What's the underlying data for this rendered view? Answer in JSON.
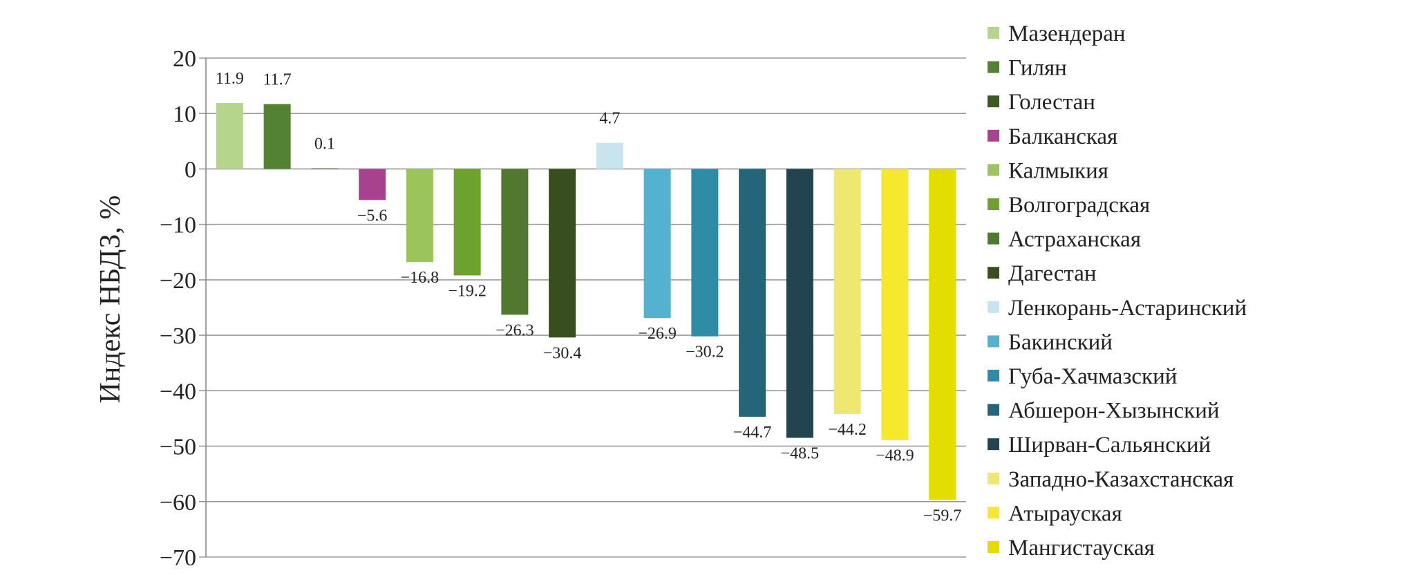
{
  "chart_data": {
    "type": "bar",
    "ylabel": "Индекс НБДЗ, %",
    "ylim": [
      -70,
      20
    ],
    "yticks": [
      20,
      10,
      0,
      -10,
      -20,
      -30,
      -40,
      -50,
      -60,
      -70
    ],
    "ytick_labels": [
      "20",
      "10",
      "0",
      "−10",
      "−20",
      "−30",
      "−40",
      "−50",
      "−60",
      "−70"
    ],
    "grid": true,
    "legend_position": "right",
    "categories": [
      "Мазендеран",
      "Гилян",
      "Голестан",
      "Балканская",
      "Калмыкия",
      "Волгоградская",
      "Астраханская",
      "Дагестан",
      "Ленкорань-Астаринский",
      "Бакинский",
      "Губа-Хачмазский",
      "Абшерон-Хызынский",
      "Ширван-Сальянский",
      "Западно-Казахстанская",
      "Атырауская",
      "Мангистауская"
    ],
    "values": [
      11.9,
      11.7,
      0.1,
      -5.6,
      -16.8,
      -19.2,
      -26.3,
      -30.4,
      4.7,
      -26.9,
      -30.2,
      -44.7,
      -48.5,
      -44.2,
      -48.9,
      -59.7
    ],
    "value_labels": [
      "11.9",
      "11.7",
      "0.1",
      "−5.6",
      "−16.8",
      "−19.2",
      "−26.3",
      "−30.4",
      "4.7",
      "−26.9",
      "−30.2",
      "−44.7",
      "−48.5",
      "−44.2",
      "−48.9",
      "−59.7"
    ],
    "colors": [
      "#b5d48c",
      "#538232",
      "#3d5a23",
      "#a8418f",
      "#9bc55a",
      "#6ea22e",
      "#51782f",
      "#394e1f",
      "#c7e4ef",
      "#52b2cf",
      "#2f8ca7",
      "#256579",
      "#21444f",
      "#efe870",
      "#f5e82e",
      "#e4dd00"
    ]
  }
}
